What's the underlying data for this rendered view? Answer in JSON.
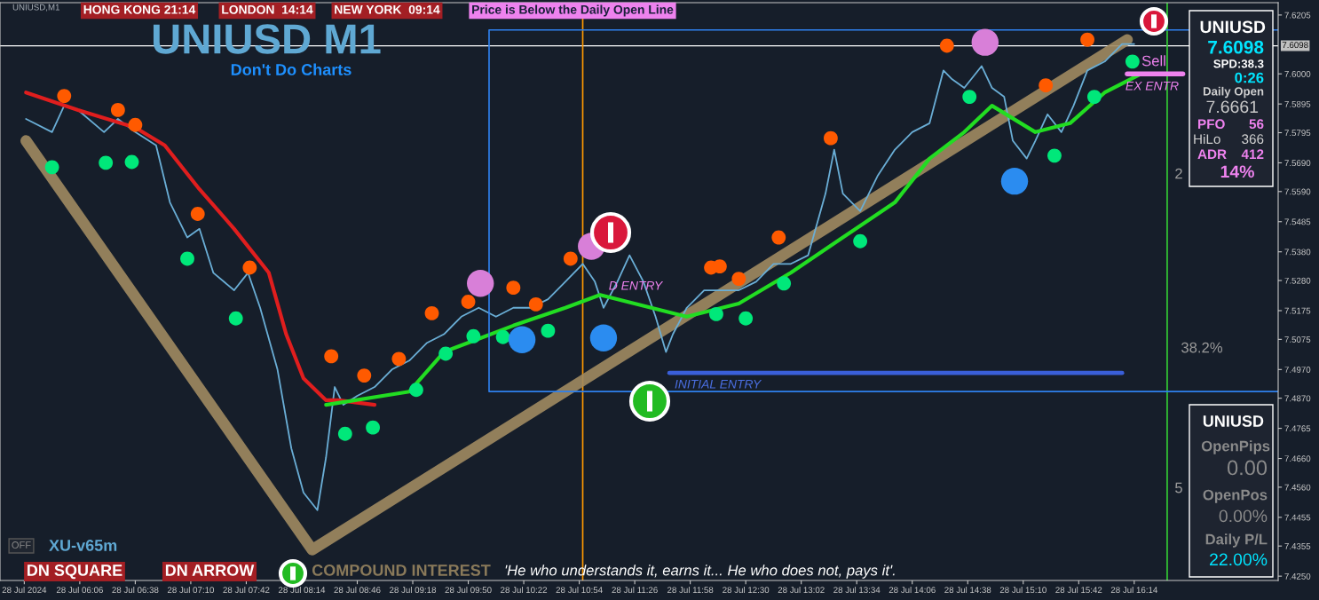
{
  "chart_data": {
    "type": "line",
    "title": "UNIUSD M1",
    "subtitle": "Don't Do Charts",
    "xlim": [
      "2024-07-28T05:20",
      "2024-07-28T17:37"
    ],
    "xticks": [
      {
        "value": "2024-07-28T05:34",
        "label": "28 Jul 2024"
      },
      {
        "value": "2024-07-28T06:06",
        "label": "28 Jul 06:06"
      },
      {
        "value": "2024-07-28T06:38",
        "label": "28 Jul 06:38"
      },
      {
        "value": "2024-07-28T07:10",
        "label": "28 Jul 07:10"
      },
      {
        "value": "2024-07-28T07:42",
        "label": "28 Jul 07:42"
      },
      {
        "value": "2024-07-28T08:14",
        "label": "28 Jul 08:14"
      },
      {
        "value": "2024-07-28T08:46",
        "label": "28 Jul 08:46"
      },
      {
        "value": "2024-07-28T09:18",
        "label": "28 Jul 09:18"
      },
      {
        "value": "2024-07-28T09:50",
        "label": "28 Jul 09:50"
      },
      {
        "value": "2024-07-28T10:22",
        "label": "28 Jul 10:22"
      },
      {
        "value": "2024-07-28T10:54",
        "label": "28 Jul 10:54"
      },
      {
        "value": "2024-07-28T11:26",
        "label": "28 Jul 11:26"
      },
      {
        "value": "2024-07-28T11:58",
        "label": "28 Jul 11:58"
      },
      {
        "value": "2024-07-28T12:30",
        "label": "28 Jul 12:30"
      },
      {
        "value": "2024-07-28T13:02",
        "label": "28 Jul 13:02"
      },
      {
        "value": "2024-07-28T13:34",
        "label": "28 Jul 13:34"
      },
      {
        "value": "2024-07-28T14:06",
        "label": "28 Jul 14:06"
      },
      {
        "value": "2024-07-28T14:38",
        "label": "28 Jul 14:38"
      },
      {
        "value": "2024-07-28T15:10",
        "label": "28 Jul 15:10"
      },
      {
        "value": "2024-07-28T15:42",
        "label": "28 Jul 15:42"
      },
      {
        "value": "2024-07-28T16:14",
        "label": "28 Jul 16:14"
      }
    ],
    "ylim": [
      7.4235,
      7.6248
    ],
    "yticks": [
      {
        "value": 7.6205,
        "label": "7.6205"
      },
      {
        "value": 7.6,
        "label": "7.6000"
      },
      {
        "value": 7.5895,
        "label": "7.5895"
      },
      {
        "value": 7.5795,
        "label": "7.5795"
      },
      {
        "value": 7.569,
        "label": "7.5690"
      },
      {
        "value": 7.559,
        "label": "7.5590"
      },
      {
        "value": 7.5485,
        "label": "7.5485"
      },
      {
        "value": 7.538,
        "label": "7.5380"
      },
      {
        "value": 7.528,
        "label": "7.5280"
      },
      {
        "value": 7.5175,
        "label": "7.5175"
      },
      {
        "value": 7.5075,
        "label": "7.5075"
      },
      {
        "value": 7.497,
        "label": "7.4970"
      },
      {
        "value": 7.487,
        "label": "7.4870"
      },
      {
        "value": 7.4765,
        "label": "7.4765"
      },
      {
        "value": 7.466,
        "label": "7.4660"
      },
      {
        "value": 7.456,
        "label": "7.4560"
      },
      {
        "value": 7.4455,
        "label": "7.4455"
      },
      {
        "value": 7.4355,
        "label": "7.4355"
      },
      {
        "value": 7.425,
        "label": "7.4250"
      }
    ],
    "series": [
      {
        "color": "#a08a60",
        "x": [
          "2024-07-28T05:35",
          "2024-07-28T08:20",
          "2024-07-28T16:10"
        ],
        "values": [
          7.5767,
          7.4342,
          7.6119
        ]
      },
      {
        "color": "#6aaed6",
        "x": [
          "2024-07-28T05:35",
          "2024-07-28T05:50",
          "2024-07-28T05:57",
          "2024-07-28T06:05",
          "2024-07-28T06:20",
          "2024-07-28T06:28",
          "2024-07-28T06:38",
          "2024-07-28T06:50",
          "2024-07-28T06:58",
          "2024-07-28T07:08",
          "2024-07-28T07:15",
          "2024-07-28T07:23",
          "2024-07-28T07:35",
          "2024-07-28T07:43",
          "2024-07-28T07:50",
          "2024-07-28T08:00",
          "2024-07-28T08:08",
          "2024-07-28T08:15",
          "2024-07-28T08:23",
          "2024-07-28T08:28",
          "2024-07-28T08:33",
          "2024-07-28T08:38",
          "2024-07-28T08:46",
          "2024-07-28T08:56",
          "2024-07-28T09:06",
          "2024-07-28T09:16",
          "2024-07-28T09:26",
          "2024-07-28T09:36",
          "2024-07-28T09:46",
          "2024-07-28T09:56",
          "2024-07-28T10:06",
          "2024-07-28T10:16",
          "2024-07-28T10:26",
          "2024-07-28T10:36",
          "2024-07-28T10:46",
          "2024-07-28T10:56",
          "2024-07-28T11:03",
          "2024-07-28T11:08",
          "2024-07-28T11:16",
          "2024-07-28T11:23",
          "2024-07-28T11:31",
          "2024-07-28T11:38",
          "2024-07-28T11:44",
          "2024-07-28T11:48",
          "2024-07-28T11:56",
          "2024-07-28T12:06",
          "2024-07-28T12:16",
          "2024-07-28T12:26",
          "2024-07-28T12:36",
          "2024-07-28T12:46",
          "2024-07-28T12:56",
          "2024-07-28T13:06",
          "2024-07-28T13:16",
          "2024-07-28T13:21",
          "2024-07-28T13:26",
          "2024-07-28T13:36",
          "2024-07-28T13:46",
          "2024-07-28T13:56",
          "2024-07-28T14:06",
          "2024-07-28T14:16",
          "2024-07-28T14:24",
          "2024-07-28T14:29",
          "2024-07-28T14:36",
          "2024-07-28T14:46",
          "2024-07-28T14:52",
          "2024-07-28T14:59",
          "2024-07-28T15:04",
          "2024-07-28T15:12",
          "2024-07-28T15:17",
          "2024-07-28T15:24",
          "2024-07-28T15:32",
          "2024-07-28T15:39",
          "2024-07-28T15:47",
          "2024-07-28T15:57",
          "2024-07-28T16:07",
          "2024-07-28T16:14"
        ],
        "values": [
          7.5843,
          7.5797,
          7.5889,
          7.5874,
          7.5797,
          7.5843,
          7.5797,
          7.5751,
          7.5552,
          7.543,
          7.546,
          7.5307,
          7.5246,
          7.5307,
          7.5185,
          7.497,
          7.4695,
          7.4541,
          7.448,
          7.4664,
          7.4909,
          7.4847,
          7.4878,
          7.4909,
          7.497,
          7.5001,
          7.5062,
          7.5093,
          7.5154,
          7.5185,
          7.5154,
          7.5185,
          7.5185,
          7.5215,
          7.5276,
          7.5338,
          7.5276,
          7.5185,
          7.5276,
          7.5368,
          7.5276,
          7.5154,
          7.5031,
          7.5093,
          7.5185,
          7.5246,
          7.5246,
          7.5246,
          7.5276,
          7.5338,
          7.5338,
          7.5368,
          7.5583,
          7.5736,
          7.5583,
          7.5522,
          7.5644,
          7.5736,
          7.5797,
          7.5828,
          7.6012,
          7.5981,
          7.5951,
          7.6027,
          7.5951,
          7.592,
          7.5767,
          7.5705,
          7.5767,
          7.5859,
          7.5797,
          7.5889,
          7.6012,
          7.6043,
          7.6104,
          7.6104
        ]
      },
      {
        "color": "#e01e1e",
        "x": [
          "2024-07-28T05:35",
          "2024-07-28T06:05",
          "2024-07-28T06:38",
          "2024-07-28T06:55",
          "2024-07-28T07:15",
          "2024-07-28T07:35",
          "2024-07-28T07:55",
          "2024-07-28T08:05",
          "2024-07-28T08:15",
          "2024-07-28T08:28",
          "2024-07-28T08:35",
          "2024-07-28T08:56"
        ],
        "values": [
          7.5935,
          7.5874,
          7.5813,
          7.5751,
          7.5598,
          7.546,
          7.5307,
          7.5093,
          7.4939,
          7.4863,
          7.4863,
          7.4847
        ]
      },
      {
        "color": "#22dd22",
        "x": [
          "2024-07-28T08:28",
          "2024-07-28T09:16",
          "2024-07-28T09:36",
          "2024-07-28T09:56",
          "2024-07-28T10:16",
          "2024-07-28T10:46",
          "2024-07-28T11:06",
          "2024-07-28T11:56",
          "2024-07-28T12:26",
          "2024-07-28T12:56",
          "2024-07-28T13:26",
          "2024-07-28T13:56",
          "2024-07-28T14:16",
          "2024-07-28T14:36",
          "2024-07-28T14:52",
          "2024-07-28T15:17",
          "2024-07-28T15:37",
          "2024-07-28T15:57",
          "2024-07-28T16:17"
        ],
        "values": [
          7.4847,
          7.4893,
          7.5031,
          7.5077,
          7.5123,
          7.5185,
          7.523,
          7.5154,
          7.52,
          7.5307,
          7.543,
          7.5552,
          7.5705,
          7.5797,
          7.5889,
          7.5797,
          7.5828,
          7.5935,
          7.5997
        ]
      },
      {
        "color": "#2f80ed",
        "x": [
          "2024-07-28T17:37",
          "2024-07-28T10:02",
          "2024-07-28T10:02",
          "2024-07-28T17:37"
        ],
        "values": [
          7.6153,
          7.6153,
          7.4893,
          7.4893
        ]
      },
      {
        "color": "#3a5fd9",
        "x": [
          "2024-07-28T11:46",
          "2024-07-28T16:07"
        ],
        "values": [
          7.4958,
          7.4958
        ]
      },
      {
        "color": "#ee82ee",
        "x": [
          "2024-07-28T16:10",
          "2024-07-28T16:42"
        ],
        "values": [
          7.6,
          7.6
        ]
      },
      {
        "type": "scatter",
        "marker": "circle",
        "color": "#ff5a00",
        "x": [
          "2024-07-28T05:57",
          "2024-07-28T06:28",
          "2024-07-28T06:38",
          "2024-07-28T07:14",
          "2024-07-28T07:44",
          "2024-07-28T08:31",
          "2024-07-28T08:50",
          "2024-07-28T09:10",
          "2024-07-28T09:29",
          "2024-07-28T09:50",
          "2024-07-28T10:16",
          "2024-07-28T10:29",
          "2024-07-28T10:49",
          "2024-07-28T12:10",
          "2024-07-28T12:15",
          "2024-07-28T12:26",
          "2024-07-28T12:49",
          "2024-07-28T13:19",
          "2024-07-28T14:26",
          "2024-07-28T15:23",
          "2024-07-28T15:47"
        ],
        "values": [
          7.5923,
          7.5874,
          7.5822,
          7.5512,
          7.5325,
          7.5016,
          7.4949,
          7.5007,
          7.5166,
          7.5206,
          7.5255,
          7.5197,
          7.5356,
          7.5325,
          7.5329,
          7.5286,
          7.543,
          7.5776,
          7.6098,
          7.596,
          7.6119
        ]
      },
      {
        "type": "scatter",
        "marker": "circle",
        "color": "#00e87a",
        "x": [
          "2024-07-28T05:50",
          "2024-07-28T06:21",
          "2024-07-28T06:36",
          "2024-07-28T07:08",
          "2024-07-28T07:36",
          "2024-07-28T08:39",
          "2024-07-28T08:55",
          "2024-07-28T09:20",
          "2024-07-28T09:37",
          "2024-07-28T09:53",
          "2024-07-28T10:10",
          "2024-07-28T10:36",
          "2024-07-28T12:13",
          "2024-07-28T12:30",
          "2024-07-28T12:52",
          "2024-07-28T13:36",
          "2024-07-28T14:39",
          "2024-07-28T15:28",
          "2024-07-28T15:51",
          "2024-07-28T16:13"
        ],
        "values": [
          7.5675,
          7.569,
          7.5693,
          7.5356,
          7.5148,
          7.4746,
          7.4768,
          7.4899,
          7.5025,
          7.5086,
          7.5083,
          7.5105,
          7.5163,
          7.5148,
          7.527,
          7.5417,
          7.592,
          7.5715,
          7.592,
          7.6043
        ]
      },
      {
        "type": "scatter",
        "marker": "circle",
        "color": "#d87fd8",
        "x": [
          "2024-07-28T09:57",
          "2024-07-28T11:01",
          "2024-07-28T14:48"
        ],
        "values": [
          7.527,
          7.5399,
          7.611
        ]
      },
      {
        "type": "scatter",
        "marker": "circle",
        "color": "#2b8cf0",
        "x": [
          "2024-07-28T10:21",
          "2024-07-28T11:08",
          "2024-07-28T15:05"
        ],
        "values": [
          7.5074,
          7.508,
          7.5626
        ]
      }
    ],
    "ref_lines": [
      {
        "axis": "y",
        "value": 7.6098,
        "label": "7.6098",
        "color": "#ffffff"
      },
      {
        "axis": "x",
        "value": "2024-07-28T10:56",
        "color": "#ff9900"
      },
      {
        "axis": "x",
        "value": "2024-07-28T16:33",
        "color": "#33cc33"
      }
    ],
    "annotations": [
      "UNIUSD,M1",
      "HONG KONG 21:14",
      "LONDON  14:14",
      "NEW YORK  09:14",
      "Price is Below the Daily Open Line",
      "UNIUSD",
      "7.6098",
      "SPD:38.3",
      "0:26",
      "Daily Open",
      "7.6661",
      "PFO",
      "56",
      "HiLo",
      "366",
      "ADR",
      "412",
      "14%",
      "UNIUSD",
      "OpenPips",
      "0.00",
      "OpenPos",
      "0.00%",
      "Daily P/L",
      "22.00%",
      "38.2%",
      "2",
      "5",
      "Sell",
      "EX ENTR",
      "D ENTRY",
      "INITIAL ENTRY",
      "OFF",
      "XU-v65m",
      "DN SQUARE",
      "DN ARROW",
      "COMPOUND INTEREST",
      "'He who understands it, earns it... He who does not, pays it'."
    ]
  }
}
